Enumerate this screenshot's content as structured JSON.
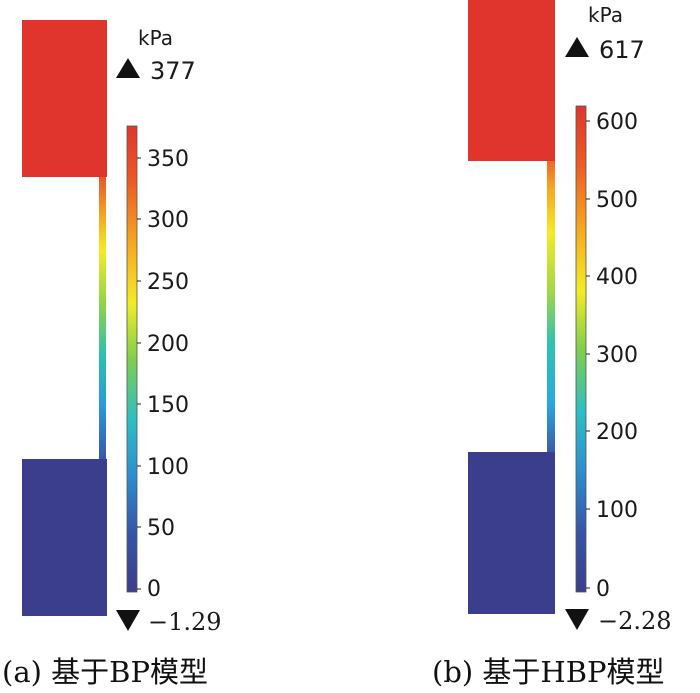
{
  "panels": [
    {
      "caption": "(a) 基于BP模型",
      "unit": "kPa",
      "max_label": "377",
      "min_label": "−1.29",
      "max_value": 377,
      "min_value": -1.29,
      "ticks": [
        "350",
        "300",
        "250",
        "200",
        "150",
        "100",
        "50",
        "0"
      ]
    },
    {
      "caption": "(b) 基于HBP模型",
      "unit": "kPa",
      "max_label": "617",
      "min_label": "−2.28",
      "max_value": 617,
      "min_value": -2.28,
      "ticks": [
        "600",
        "500",
        "400",
        "300",
        "200",
        "100",
        "0"
      ]
    }
  ],
  "colors": {
    "high": "#e0352d",
    "low": "#3b3e8c"
  }
}
